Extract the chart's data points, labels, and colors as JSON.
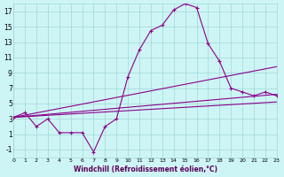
{
  "xlabel": "Windchill (Refroidissement éolien,°C)",
  "ylabel": "",
  "background_color": "#cef5f5",
  "line_color": "#8b008b",
  "xlim": [
    0,
    23
  ],
  "ylim": [
    -2,
    18
  ],
  "xticks": [
    0,
    1,
    2,
    3,
    4,
    5,
    6,
    7,
    8,
    9,
    10,
    11,
    12,
    13,
    14,
    15,
    16,
    17,
    18,
    19,
    20,
    21,
    22,
    23
  ],
  "yticks": [
    -1,
    1,
    3,
    5,
    7,
    9,
    11,
    13,
    15,
    17
  ],
  "grid_color": "#a0d8d8",
  "line1_x": [
    0,
    1,
    2,
    3,
    4,
    5,
    6,
    7,
    8,
    9,
    10,
    11,
    12,
    13,
    14,
    15,
    16,
    17,
    18,
    19,
    20,
    21,
    22,
    23
  ],
  "line1_y": [
    3.2,
    3.8,
    2.0,
    3.0,
    1.2,
    1.2,
    1.2,
    -1.3,
    2.0,
    3.0,
    8.5,
    12.0,
    14.5,
    15.2,
    17.2,
    18.0,
    17.5,
    12.8,
    10.5,
    7.0,
    6.5,
    6.0,
    6.5,
    6.0
  ],
  "line2_x": [
    0,
    23
  ],
  "line2_y": [
    3.2,
    6.2
  ],
  "line3_x": [
    0,
    23
  ],
  "line3_y": [
    3.2,
    9.8
  ],
  "line4_x": [
    0,
    23
  ],
  "line4_y": [
    3.2,
    5.2
  ]
}
